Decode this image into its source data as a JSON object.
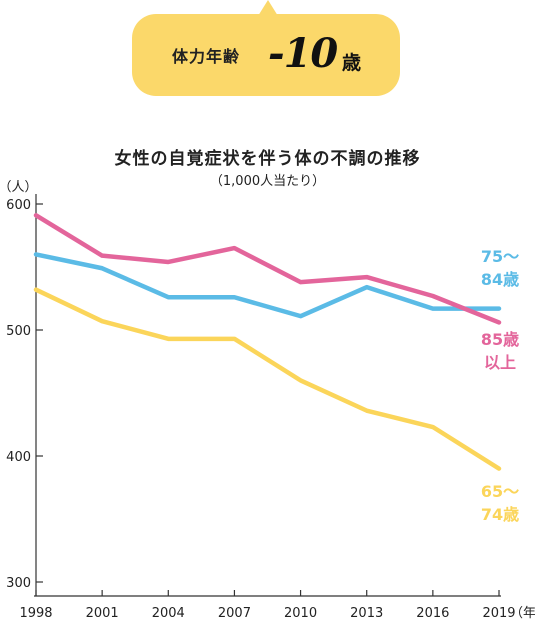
{
  "badge": {
    "label": "体力年齢",
    "value": "-10",
    "unit": "歳",
    "color": "#fbd86a"
  },
  "chart_data": {
    "type": "line",
    "title": "女性の自覚症状を伴う体の不調の推移",
    "subtitle": "（1,000人当たり）",
    "ylabel": "（人）",
    "xlabel": "（年）",
    "x": [
      "1998",
      "2001",
      "2004",
      "2007",
      "2010",
      "2013",
      "2016",
      "2019"
    ],
    "yticks": [
      "600",
      "500",
      "400",
      "300"
    ],
    "ytick_values": [
      600,
      500,
      400,
      300
    ],
    "ylim": [
      300,
      600
    ],
    "grid": false,
    "series": [
      {
        "name": "85歳以上",
        "label_lines": [
          "85歳",
          "以上"
        ],
        "color": "#e3659b",
        "values": [
          591,
          559,
          554,
          565,
          538,
          542,
          527,
          506
        ]
      },
      {
        "name": "75〜84歳",
        "label_lines": [
          "75〜",
          "84歳"
        ],
        "color": "#5bbbe6",
        "values": [
          560,
          549,
          526,
          526,
          511,
          534,
          517,
          517
        ]
      },
      {
        "name": "65〜74歳",
        "label_lines": [
          "65〜",
          "74歳"
        ],
        "color": "#fbd55a",
        "values": [
          532,
          507,
          493,
          493,
          460,
          436,
          423,
          390
        ]
      }
    ]
  }
}
